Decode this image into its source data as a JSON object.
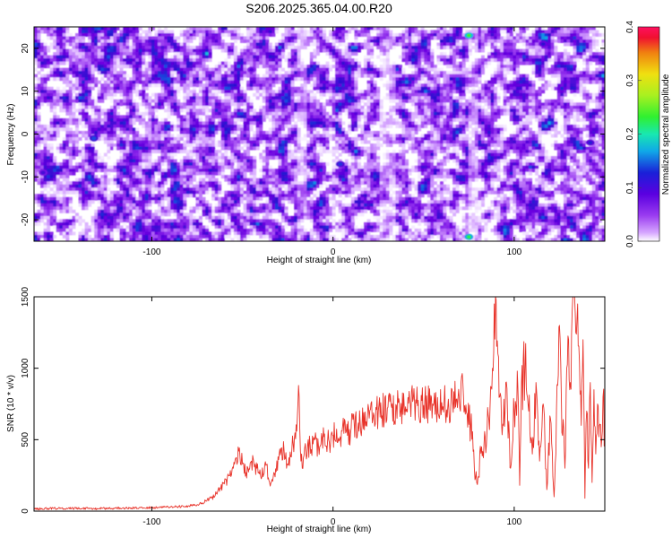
{
  "title": "S206.2025.365.04.00.R20",
  "colors": {
    "line": "#e8332a",
    "colormap": [
      "#ffffff",
      "#d6a6ff",
      "#9a3cf0",
      "#6a00e0",
      "#2a10d0",
      "#1850e0",
      "#10b8e8",
      "#18e8a8",
      "#30f030",
      "#a8f020",
      "#f0e010",
      "#f08010",
      "#f01030",
      "#ff1060"
    ]
  },
  "chart_data": [
    {
      "type": "heatmap",
      "title": "S206.2025.365.04.00.R20",
      "xlabel": "Height of straight line (km)",
      "ylabel": "Frequency (Hz)",
      "xlim": [
        -165,
        150
      ],
      "ylim": [
        -25,
        25
      ],
      "xticks": [
        -100,
        0,
        100
      ],
      "xtick_labels": [
        "-100",
        "0",
        "100"
      ],
      "yticks": [
        -20,
        -10,
        0,
        10,
        20
      ],
      "ytick_labels": [
        "-20",
        "-10",
        "0",
        "10",
        "20"
      ],
      "colorbar": {
        "label": "Normalized spectral amplitude",
        "range": [
          0,
          0.4
        ],
        "ticks": [
          0,
          0.1,
          0.2,
          0.3,
          0.4
        ],
        "tick_labels": [
          "0.0",
          "0.1",
          "0.2",
          "0.3",
          "0.4"
        ]
      },
      "quiet_bands_km": [
        [
          -20,
          -15
        ],
        [
          25,
          35
        ],
        [
          75,
          80
        ]
      ],
      "hot_spots": [
        {
          "x": 75,
          "y": 23,
          "value": 0.25
        },
        {
          "x": 75,
          "y": -24,
          "value": 0.24
        },
        {
          "x": -132,
          "y": -1,
          "value": 0.15
        },
        {
          "x": 4,
          "y": -7,
          "value": 0.14
        },
        {
          "x": 142,
          "y": -2,
          "value": 0.13
        },
        {
          "x": 116,
          "y": 21,
          "value": 0.12
        },
        {
          "x": -160,
          "y": -9,
          "value": 0.11
        },
        {
          "x": -45,
          "y": 15,
          "value": 0.1
        }
      ]
    },
    {
      "type": "line",
      "xlabel": "Height of straight line (km)",
      "ylabel": "SNR (10 * v/v)",
      "xlim": [
        -165,
        150
      ],
      "ylim": [
        0,
        1500
      ],
      "xticks": [
        -100,
        0,
        100
      ],
      "xtick_labels": [
        "-100",
        "0",
        "100"
      ],
      "yticks": [
        0,
        500,
        1000,
        1500
      ],
      "ytick_labels": [
        "0",
        "500",
        "1000",
        "1500"
      ],
      "series": [
        {
          "name": "SNR",
          "x": [
            -165,
            -150,
            -130,
            -110,
            -100,
            -90,
            -80,
            -75,
            -70,
            -65,
            -60,
            -55,
            -52,
            -50,
            -48,
            -45,
            -42,
            -40,
            -37,
            -35,
            -32,
            -30,
            -27,
            -25,
            -22,
            -20,
            -19,
            -18,
            -17,
            -16,
            -15,
            -14,
            -12,
            -10,
            -8,
            -5,
            -2,
            0,
            3,
            5,
            8,
            10,
            15,
            20,
            25,
            30,
            35,
            40,
            45,
            50,
            55,
            60,
            65,
            68,
            70,
            72,
            74,
            76,
            78,
            80,
            82,
            84,
            86,
            88,
            89,
            90,
            91,
            92,
            94,
            96,
            98,
            100,
            102,
            103,
            104,
            106,
            108,
            110,
            112,
            114,
            116,
            118,
            120,
            122,
            124,
            125,
            126,
            128,
            129,
            130,
            131,
            132,
            133,
            134,
            135,
            136,
            137,
            138,
            139,
            140,
            141,
            142,
            143,
            144,
            145,
            146,
            147,
            148,
            149,
            150
          ],
          "values": [
            15,
            20,
            18,
            22,
            25,
            28,
            35,
            45,
            70,
            110,
            190,
            300,
            420,
            330,
            270,
            350,
            300,
            250,
            320,
            200,
            240,
            360,
            420,
            330,
            470,
            560,
            880,
            420,
            300,
            390,
            420,
            470,
            430,
            500,
            450,
            520,
            480,
            530,
            510,
            560,
            530,
            580,
            620,
            650,
            700,
            720,
            740,
            730,
            760,
            740,
            750,
            760,
            740,
            780,
            720,
            800,
            680,
            600,
            300,
            230,
            450,
            520,
            640,
            1000,
            1450,
            1480,
            1100,
            800,
            600,
            860,
            300,
            700,
            880,
            180,
            900,
            1000,
            700,
            400,
            900,
            350,
            750,
            150,
            650,
            100,
            880,
            1300,
            800,
            300,
            1000,
            1200,
            900,
            1400,
            1500,
            1250,
            1450,
            1050,
            600,
            1200,
            90,
            700,
            300,
            900,
            200,
            850,
            400,
            750,
            600,
            450,
            800,
            500
          ]
        }
      ]
    }
  ]
}
